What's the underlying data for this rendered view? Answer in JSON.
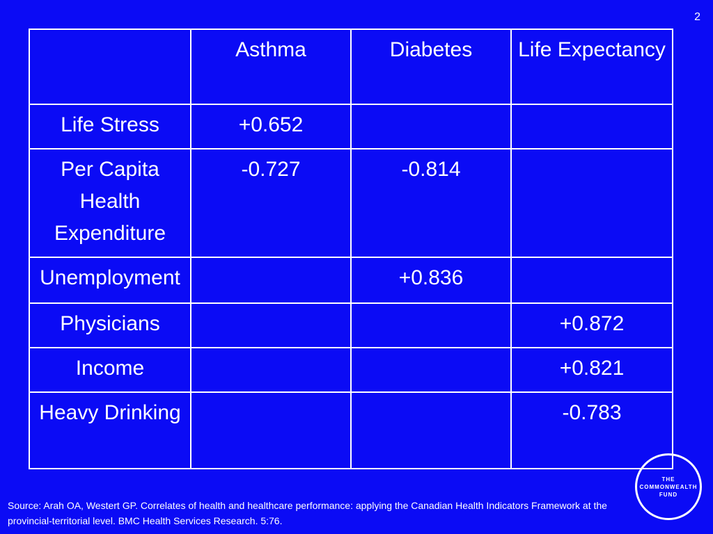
{
  "slide": {
    "number": "2"
  },
  "table": {
    "headers": [
      "",
      "Asthma",
      "Diabetes",
      "Life Expectancy"
    ],
    "rows": [
      {
        "label": "Life Stress",
        "cells": [
          "+0.652",
          "",
          ""
        ]
      },
      {
        "label": "Per Capita Health Expenditure",
        "cells": [
          "-0.727",
          "-0.814",
          ""
        ]
      },
      {
        "label": "Unemployment",
        "cells": [
          "",
          "+0.836",
          ""
        ]
      },
      {
        "label": "Physicians",
        "cells": [
          "",
          "",
          "+0.872"
        ]
      },
      {
        "label": "Income",
        "cells": [
          "",
          "",
          "+0.821"
        ]
      },
      {
        "label": "Heavy Drinking",
        "cells": [
          "",
          "",
          "-0.783"
        ]
      }
    ]
  },
  "source": "Source: Arah OA, Westert GP. Correlates of health and healthcare performance: applying the Canadian Health Indicators Framework at the provincial-territorial level. BMC Health Services Research. 5:76.",
  "logo": {
    "lines": [
      "THE",
      "COMMONWEALTH",
      "FUND"
    ]
  },
  "colors": {
    "background": "#0b0bf5",
    "text": "#ffffff"
  }
}
